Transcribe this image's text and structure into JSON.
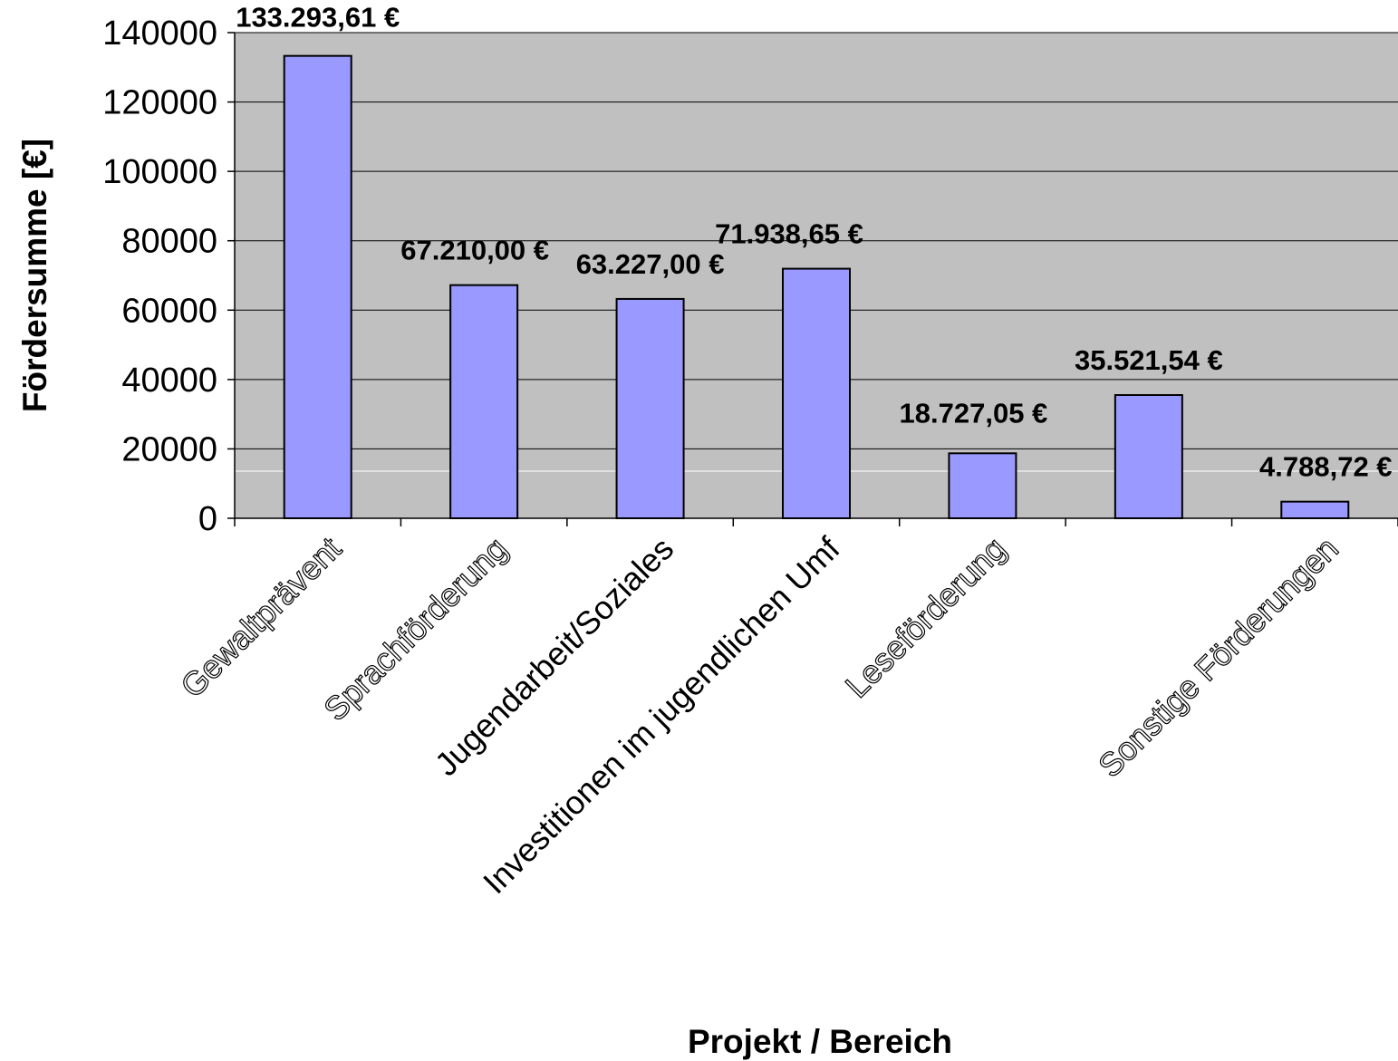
{
  "chart_data": {
    "type": "bar",
    "title": "",
    "xlabel": "Projekt / Bereich",
    "ylabel": "Fördersumme [€]",
    "ylim": [
      0,
      140000
    ],
    "yticks": [
      0,
      20000,
      40000,
      60000,
      80000,
      100000,
      120000,
      140000
    ],
    "ytick_labels": [
      "0",
      "20000",
      "40000",
      "60000",
      "80000",
      "100000",
      "120000",
      "140000"
    ],
    "grid": true,
    "legend": "none",
    "categories": [
      "Gewaltprävent",
      "Sprachförderung",
      "Jugendarbeit/Soziales",
      "Investitionen im jugendlichen Umf",
      "Leseförderung",
      "",
      "Sonstige Förderungen"
    ],
    "values": [
      133293.61,
      67210.0,
      63227.0,
      71938.65,
      18727.05,
      35521.54,
      4788.72
    ],
    "data_labels": [
      "133.293,61 €",
      "67.210,00 €",
      "63.227,00 €",
      "71.938,65 €",
      "18.727,05 €",
      "35.521,54 €",
      "4.788,72 €"
    ],
    "colors": {
      "bar_fill": "#9999ff",
      "bar_stroke": "#000000",
      "plot_background": "#c0c0c0",
      "gridline": "#000000"
    }
  }
}
